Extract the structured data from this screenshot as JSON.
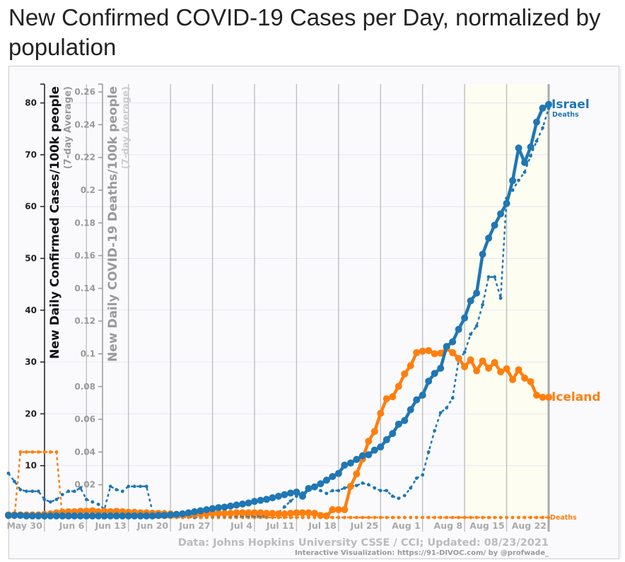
{
  "title": "New Confirmed COVID-19 Cases per Day, normalized by population",
  "credits": {
    "data": "Data: Johns Hopkins University CSSE / CCI; Updated: 08/23/2021",
    "viz": "Interactive Visualization: https://91-DIVOC.com/ by @profwade_"
  },
  "chart_data": {
    "type": "line",
    "title": "New Confirmed COVID-19 Cases per Day, normalized by population",
    "ylabel": "New Daily Confirmed Cases/100k people",
    "ylabel_sub": "(7-day Average)",
    "y2label": "New Daily COVID-19 Deaths/100k people",
    "y2label_sub": "(7-day Average)",
    "ylim": [
      0,
      84
    ],
    "y2lim": [
      0,
      0.265
    ],
    "yticks": [
      "10",
      "20",
      "30",
      "40",
      "50",
      "60",
      "70",
      "80"
    ],
    "y2ticks": [
      "0.02",
      "0.04",
      "0.06",
      "0.08",
      "0.1",
      "0.12",
      "0.14",
      "0.16",
      "0.18",
      "0.2",
      "0.22",
      "0.24",
      "0.26"
    ],
    "xticks": [
      "May 30",
      "Jun 6",
      "Jun 13",
      "Jun 20",
      "Jun 27",
      "Jul 4",
      "Jul 11",
      "Jul 18",
      "Jul 25",
      "Aug 1",
      "Aug 8",
      "Aug 15",
      "Aug 22"
    ],
    "x_start": "2021-05-24",
    "x_end": "2021-08-22",
    "highlight_from": "2021-08-08",
    "grid": true,
    "series": [
      {
        "name": "Israel",
        "metric": "cases",
        "axis": "left",
        "color": "#1f77b4",
        "values": [
          0.4,
          0.4,
          0.4,
          0.3,
          0.3,
          0.3,
          0.3,
          0.3,
          0.3,
          0.3,
          0.3,
          0.3,
          0.3,
          0.3,
          0.3,
          0.3,
          0.3,
          0.3,
          0.3,
          0.3,
          0.3,
          0.3,
          0.3,
          0.3,
          0.3,
          0.4,
          0.4,
          0.5,
          0.6,
          0.7,
          0.9,
          1.1,
          1.3,
          1.5,
          1.7,
          1.9,
          2.0,
          2.2,
          2.4,
          2.6,
          2.8,
          3.1,
          3.3,
          3.5,
          3.8,
          4.1,
          4.4,
          4.7,
          4.9,
          4.1,
          5.6,
          5.9,
          6.5,
          7.2,
          7.9,
          8.5,
          10.1,
          10.5,
          11.2,
          11.9,
          12.1,
          13.0,
          13.6,
          15.0,
          16.2,
          18.0,
          18.7,
          20.8,
          22.7,
          23.6,
          26.3,
          27.8,
          28.8,
          33.0,
          33.9,
          36.3,
          38.5,
          41.8,
          43.3,
          50.8,
          53.9,
          56.4,
          58.6,
          60.6,
          65.0,
          71.3,
          68.5,
          71.5,
          76.3,
          79.0,
          79.7
        ]
      },
      {
        "name": "Iceland",
        "metric": "cases",
        "axis": "left",
        "color": "#ff7f0e",
        "values": [
          0.5,
          0.5,
          0.5,
          0.5,
          0.5,
          0.5,
          0.6,
          0.7,
          0.9,
          1.0,
          1.1,
          1.1,
          1.2,
          1.2,
          1.3,
          1.1,
          1.2,
          1.1,
          1.2,
          1.1,
          1.0,
          1.0,
          0.9,
          0.9,
          0.8,
          0.8,
          0.7,
          0.7,
          0.6,
          0.6,
          0.6,
          0.6,
          0.7,
          0.7,
          0.8,
          0.8,
          0.8,
          0.8,
          0.9,
          0.9,
          0.9,
          0.9,
          0.9,
          0.8,
          0.8,
          0.7,
          0.7,
          0.8,
          0.9,
          0.9,
          0.9,
          0.8,
          0.4,
          0.3,
          1.5,
          1.5,
          1.5,
          6.0,
          8.4,
          11.3,
          14.7,
          16.6,
          20.1,
          22.9,
          23.3,
          25.3,
          27.7,
          29.3,
          31.8,
          32.1,
          32.2,
          31.6,
          31.7,
          32.6,
          31.8,
          30.7,
          29.1,
          30.4,
          28.3,
          30.2,
          28.8,
          29.9,
          28.1,
          28.7,
          26.6,
          28.5,
          26.9,
          26.2,
          23.6,
          23.2,
          23.2
        ]
      },
      {
        "name": "Deaths",
        "country": "Israel",
        "metric": "deaths",
        "axis": "right",
        "color": "#1f77b4",
        "values": [
          0.027,
          0.022,
          0.017,
          0.016,
          0.016,
          0.016,
          0.011,
          0.0095,
          0.011,
          0.014,
          0.016,
          0.016,
          0.018,
          0.011,
          0.0095,
          0.008,
          0.005,
          0.019,
          0.017,
          0.016,
          0.019,
          0.019,
          0.019,
          0.019,
          0.0035,
          0.0035,
          0.0035,
          0.002,
          0.002,
          0.001,
          0.001,
          0,
          0.001,
          0.001,
          0.001,
          0.001,
          0.001,
          0.001,
          0.001,
          0.001,
          0.001,
          0.001,
          0.001,
          0.001,
          0.002,
          0.003,
          0.0065,
          0.01,
          0.013,
          0.015,
          0.017,
          0.019,
          0.0164,
          0.0147,
          0.0164,
          0.0164,
          0.018,
          0.019,
          0.0195,
          0.021,
          0.02,
          0.018,
          0.0164,
          0.0164,
          0.013,
          0.0117,
          0.0134,
          0.018,
          0.024,
          0.026,
          0.04,
          0.053,
          0.064,
          0.067,
          0.073,
          0.096,
          0.101,
          0.112,
          0.117,
          0.13,
          0.147,
          0.147,
          0.134,
          0.195,
          0.2,
          0.206,
          0.211,
          0.221,
          0.23,
          0.238,
          0.25
        ]
      },
      {
        "name": "Deaths",
        "country": "Iceland",
        "metric": "deaths",
        "axis": "right",
        "color": "#ff7f0e",
        "values": [
          0,
          0,
          0.04,
          0.04,
          0.04,
          0.04,
          0.04,
          0.04,
          0.04,
          0,
          0,
          0,
          0,
          0,
          0,
          0,
          0,
          0,
          0,
          0,
          0,
          0,
          0,
          0,
          0,
          0,
          0,
          0,
          0,
          0,
          0,
          0,
          0,
          0,
          0,
          0,
          0,
          0,
          0,
          0,
          0,
          0,
          0,
          0,
          0,
          0,
          0,
          0,
          0,
          0,
          0,
          0,
          0,
          0,
          0,
          0,
          0,
          0,
          0,
          0,
          0,
          0,
          0,
          0,
          0,
          0,
          0,
          0,
          0,
          0,
          0,
          0,
          0,
          0,
          0,
          0,
          0,
          0,
          0,
          0,
          0,
          0,
          0,
          0,
          0,
          0,
          0,
          0,
          0,
          0,
          0
        ]
      }
    ]
  }
}
